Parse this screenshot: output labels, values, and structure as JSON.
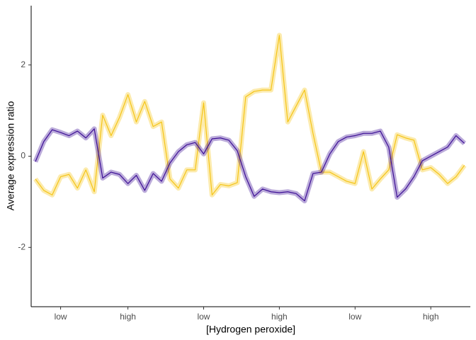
{
  "chart_data": {
    "type": "line",
    "x_label": "[Hydrogen peroxide]",
    "y_label": "Average expression ratio",
    "x": [
      0,
      1,
      2,
      3,
      4,
      5,
      6,
      7,
      8,
      9,
      10,
      11,
      12,
      13,
      14,
      15,
      16,
      17,
      18,
      19,
      20,
      21,
      22,
      23,
      24,
      25,
      26,
      27,
      28,
      29,
      30,
      31,
      32,
      33,
      34,
      35,
      36,
      37,
      38,
      39,
      40,
      41,
      42,
      43,
      44,
      45,
      46,
      47,
      48,
      49,
      50,
      51
    ],
    "series": [
      {
        "color": "#f5c518",
        "values": [
          -0.5,
          -0.75,
          -0.85,
          -0.45,
          -0.4,
          -0.7,
          -0.3,
          -0.78,
          0.9,
          0.45,
          0.85,
          1.35,
          0.75,
          1.2,
          0.65,
          0.75,
          -0.5,
          -0.7,
          -0.3,
          -0.3,
          1.17,
          -0.85,
          -0.62,
          -0.65,
          -0.58,
          1.3,
          1.42,
          1.45,
          1.45,
          2.65,
          0.75,
          1.1,
          1.45,
          0.5,
          -0.35,
          -0.35,
          -0.45,
          -0.55,
          -0.6,
          0.1,
          -0.72,
          -0.5,
          -0.3,
          0.47,
          0.4,
          0.35,
          -0.3,
          -0.25,
          -0.4,
          -0.6,
          -0.45,
          -0.2
        ]
      },
      {
        "color": "#3d0f96",
        "values": [
          -0.12,
          0.32,
          0.58,
          0.52,
          0.45,
          0.55,
          0.4,
          0.6,
          -0.48,
          -0.35,
          -0.4,
          -0.6,
          -0.42,
          -0.75,
          -0.38,
          -0.55,
          -0.15,
          0.1,
          0.25,
          0.3,
          0.05,
          0.38,
          0.4,
          0.35,
          0.12,
          -0.45,
          -0.88,
          -0.72,
          -0.78,
          -0.8,
          -0.78,
          -0.82,
          -0.98,
          -0.38,
          -0.35,
          0.05,
          0.32,
          0.42,
          0.45,
          0.5,
          0.5,
          0.55,
          0.2,
          -0.9,
          -0.72,
          -0.45,
          -0.1,
          0.0,
          0.1,
          0.2,
          0.45,
          0.28
        ]
      }
    ],
    "xlim": [
      -0.5,
      51.7
    ],
    "xticks": [
      {
        "value": 3,
        "label": "low"
      },
      {
        "value": 11,
        "label": "high"
      },
      {
        "value": 20,
        "label": "low"
      },
      {
        "value": 29,
        "label": "high"
      },
      {
        "value": 38,
        "label": "low"
      },
      {
        "value": 47,
        "label": "high"
      }
    ],
    "ylim": [
      -3.3,
      3.3
    ],
    "yticks": [
      -2,
      0,
      2
    ],
    "grid": false
  }
}
